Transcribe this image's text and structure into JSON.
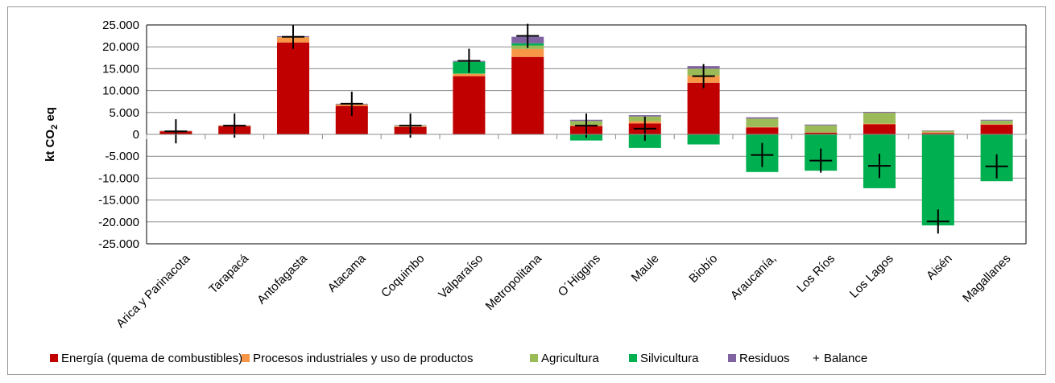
{
  "chart_data": {
    "type": "bar",
    "stacked": true,
    "title": "",
    "ylabel": "kt CO",
    "ylabel_sub": "2",
    "ylabel_suffix": " eq",
    "xlabel": "",
    "ylim": [
      -25000,
      25000
    ],
    "ytick_step": 5000,
    "ytick_labels": [
      "-25.000",
      "-20.000",
      "-15.000",
      "-10.000",
      "-5.000",
      "0",
      "5.000",
      "10.000",
      "15.000",
      "20.000",
      "25.000"
    ],
    "grid": true,
    "legend_position": "bottom",
    "categories": [
      "Arica y Parinacota",
      "Tarapacá",
      "Antofagasta",
      "Atacama",
      "Coquimbo",
      "Valparaíso",
      "Metropolitana",
      "O´Higgins",
      "Maule",
      "Biobío",
      "Araucanía,",
      "Los Ríos",
      "Los Lagos",
      "Aisén",
      "Magallanes"
    ],
    "series": [
      {
        "name": "Energía (quema de combustibles)",
        "color": "#C00000",
        "values": [
          700,
          1900,
          21000,
          6500,
          1700,
          13300,
          17700,
          1900,
          2500,
          11800,
          1600,
          400,
          2300,
          300,
          2200
        ]
      },
      {
        "name": "Procesos industriales y uso de productos",
        "color": "#F79646",
        "values": [
          50,
          80,
          1200,
          300,
          150,
          500,
          1800,
          150,
          500,
          1600,
          100,
          50,
          150,
          200,
          150
        ]
      },
      {
        "name": "Agricultura",
        "color": "#9BBB59",
        "values": [
          50,
          50,
          50,
          50,
          150,
          100,
          800,
          1000,
          1100,
          1600,
          1900,
          1600,
          2500,
          300,
          800
        ]
      },
      {
        "name": "Silvicultura",
        "color": "#00B050",
        "values": [
          0,
          0,
          0,
          0,
          0,
          2700,
          500,
          -1400,
          -3100,
          -2300,
          -8600,
          -8300,
          -12300,
          -20800,
          -10700
        ]
      },
      {
        "name": "Residuos",
        "color": "#8064A2",
        "values": [
          50,
          50,
          200,
          150,
          100,
          200,
          1500,
          300,
          300,
          600,
          300,
          200,
          200,
          100,
          200
        ]
      },
      {
        "name": "Balance",
        "type": "marker",
        "marker": "+",
        "color": "#000000",
        "values": [
          700,
          2000,
          22300,
          7000,
          2000,
          16800,
          22500,
          2000,
          1300,
          13300,
          -4700,
          -6000,
          -7200,
          -19900,
          -7300
        ]
      }
    ]
  }
}
